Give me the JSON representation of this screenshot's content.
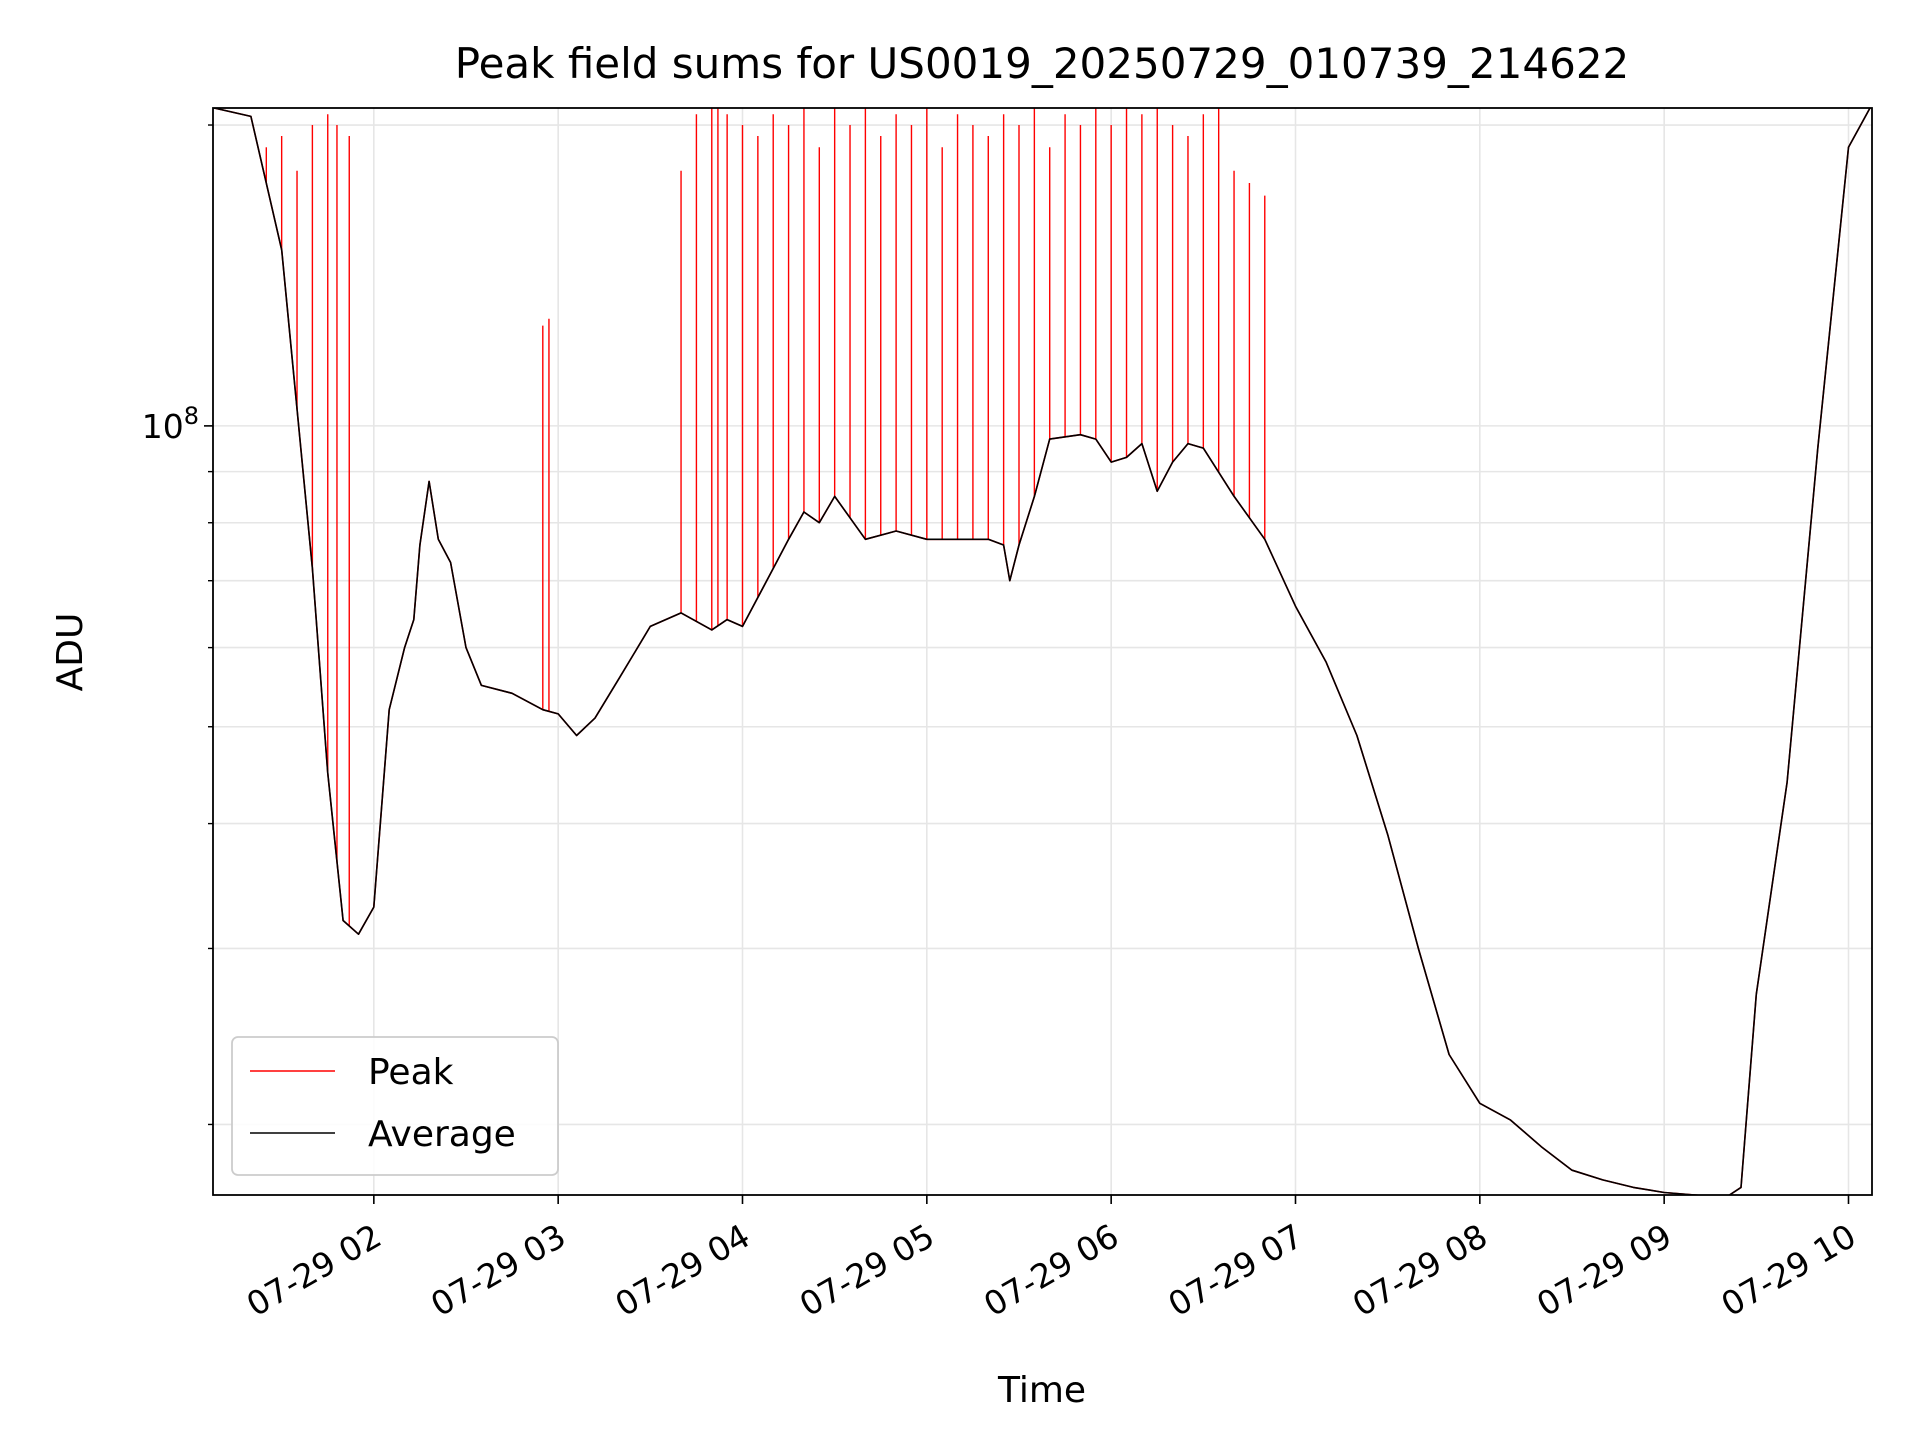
{
  "chart_data": {
    "type": "line",
    "title": "Peak field sums for US0019_20250729_010739_214622",
    "xlabel": "Time",
    "ylabel": "ADU",
    "y_scale": "log",
    "ylim": [
      17000000,
      208000000
    ],
    "xlim": [
      "2025-07-29 01:07:39",
      "2025-07-29 10:07:39"
    ],
    "grid": true,
    "legend": "lower-left",
    "x_tick_labels": [
      "07-29 02",
      "07-29 03",
      "07-29 04",
      "07-29 05",
      "07-29 06",
      "07-29 07",
      "07-29 08",
      "07-29 09",
      "07-29 10"
    ],
    "x_tick_times": [
      "2025-07-29 02:00",
      "2025-07-29 03:00",
      "2025-07-29 04:00",
      "2025-07-29 05:00",
      "2025-07-29 06:00",
      "2025-07-29 07:00",
      "2025-07-29 08:00",
      "2025-07-29 09:00",
      "2025-07-29 10:00"
    ],
    "y_major_ticks": [
      {
        "value": 100000000,
        "label_base": "10",
        "label_exp": "8"
      }
    ],
    "y_minor_ticks": [
      20000000,
      30000000,
      40000000,
      50000000,
      60000000,
      70000000,
      80000000,
      90000000,
      200000000
    ],
    "series": [
      {
        "name": "Average",
        "color": "#000000",
        "x": [
          "2025-07-29 01:08",
          "2025-07-29 01:20",
          "2025-07-29 01:30",
          "2025-07-29 01:40",
          "2025-07-29 01:45",
          "2025-07-29 01:50",
          "2025-07-29 01:55",
          "2025-07-29 02:00",
          "2025-07-29 02:05",
          "2025-07-29 02:10",
          "2025-07-29 02:13",
          "2025-07-29 02:15",
          "2025-07-29 02:18",
          "2025-07-29 02:21",
          "2025-07-29 02:25",
          "2025-07-29 02:30",
          "2025-07-29 02:35",
          "2025-07-29 02:45",
          "2025-07-29 02:55",
          "2025-07-29 03:00",
          "2025-07-29 03:06",
          "2025-07-29 03:12",
          "2025-07-29 03:20",
          "2025-07-29 03:30",
          "2025-07-29 03:40",
          "2025-07-29 03:50",
          "2025-07-29 03:55",
          "2025-07-29 04:00",
          "2025-07-29 04:10",
          "2025-07-29 04:15",
          "2025-07-29 04:20",
          "2025-07-29 04:25",
          "2025-07-29 04:30",
          "2025-07-29 04:40",
          "2025-07-29 04:50",
          "2025-07-29 05:00",
          "2025-07-29 05:10",
          "2025-07-29 05:20",
          "2025-07-29 05:25",
          "2025-07-29 05:27",
          "2025-07-29 05:30",
          "2025-07-29 05:35",
          "2025-07-29 05:40",
          "2025-07-29 05:50",
          "2025-07-29 05:55",
          "2025-07-29 06:00",
          "2025-07-29 06:05",
          "2025-07-29 06:10",
          "2025-07-29 06:15",
          "2025-07-29 06:20",
          "2025-07-29 06:25",
          "2025-07-29 06:30",
          "2025-07-29 06:40",
          "2025-07-29 06:50",
          "2025-07-29 07:00",
          "2025-07-29 07:10",
          "2025-07-29 07:20",
          "2025-07-29 07:30",
          "2025-07-29 07:40",
          "2025-07-29 07:50",
          "2025-07-29 08:00",
          "2025-07-29 08:10",
          "2025-07-29 08:20",
          "2025-07-29 08:30",
          "2025-07-29 08:40",
          "2025-07-29 08:50",
          "2025-07-29 09:00",
          "2025-07-29 09:10",
          "2025-07-29 09:20",
          "2025-07-29 09:25",
          "2025-07-29 09:30",
          "2025-07-29 09:40",
          "2025-07-29 09:50",
          "2025-07-29 10:00",
          "2025-07-29 10:07"
        ],
        "y": [
          208000000,
          204000000,
          150000000,
          72000000,
          45000000,
          32000000,
          31000000,
          33000000,
          52000000,
          60000000,
          64000000,
          76000000,
          88000000,
          77000000,
          73000000,
          60000000,
          55000000,
          54000000,
          52000000,
          51500000,
          49000000,
          51000000,
          56000000,
          63000000,
          65000000,
          62500000,
          64000000,
          63000000,
          72000000,
          77000000,
          82000000,
          80000000,
          85000000,
          77000000,
          78500000,
          77000000,
          77000000,
          77000000,
          76000000,
          70000000,
          76000000,
          85000000,
          97000000,
          98000000,
          97000000,
          92000000,
          93000000,
          96000000,
          86000000,
          92000000,
          96000000,
          95000000,
          85000000,
          77000000,
          66000000,
          58000000,
          49000000,
          39000000,
          30000000,
          23500000,
          21000000,
          20200000,
          19000000,
          18000000,
          17600000,
          17300000,
          17100000,
          17000000,
          16900000,
          17300000,
          27000000,
          44000000,
          95000000,
          190000000,
          208000000
        ]
      },
      {
        "name": "Peak",
        "color": "#ff0000",
        "x": [
          "2025-07-29 01:08",
          "2025-07-29 01:20",
          "2025-07-29 01:30",
          "2025-07-29 01:40",
          "2025-07-29 01:45",
          "2025-07-29 01:50",
          "2025-07-29 01:55",
          "2025-07-29 02:00",
          "2025-07-29 02:05",
          "2025-07-29 02:10",
          "2025-07-29 02:13",
          "2025-07-29 02:15",
          "2025-07-29 02:18",
          "2025-07-29 02:21",
          "2025-07-29 02:25",
          "2025-07-29 02:30",
          "2025-07-29 02:35",
          "2025-07-29 02:45",
          "2025-07-29 02:55",
          "2025-07-29 03:00",
          "2025-07-29 03:06",
          "2025-07-29 03:12",
          "2025-07-29 03:20",
          "2025-07-29 03:30",
          "2025-07-29 03:40",
          "2025-07-29 03:50",
          "2025-07-29 03:55",
          "2025-07-29 04:00",
          "2025-07-29 04:10",
          "2025-07-29 04:15",
          "2025-07-29 04:20",
          "2025-07-29 04:25",
          "2025-07-29 04:30",
          "2025-07-29 04:40",
          "2025-07-29 04:50",
          "2025-07-29 05:00",
          "2025-07-29 05:10",
          "2025-07-29 05:20",
          "2025-07-29 05:25",
          "2025-07-29 05:27",
          "2025-07-29 05:30",
          "2025-07-29 05:35",
          "2025-07-29 05:40",
          "2025-07-29 05:50",
          "2025-07-29 05:55",
          "2025-07-29 06:00",
          "2025-07-29 06:05",
          "2025-07-29 06:10",
          "2025-07-29 06:15",
          "2025-07-29 06:20",
          "2025-07-29 06:25",
          "2025-07-29 06:30",
          "2025-07-29 06:40",
          "2025-07-29 06:50",
          "2025-07-29 07:00",
          "2025-07-29 07:10",
          "2025-07-29 07:20",
          "2025-07-29 07:30",
          "2025-07-29 07:40",
          "2025-07-29 07:50",
          "2025-07-29 08:00",
          "2025-07-29 08:10",
          "2025-07-29 08:20",
          "2025-07-29 08:30",
          "2025-07-29 08:40",
          "2025-07-29 08:50",
          "2025-07-29 09:00",
          "2025-07-29 09:10",
          "2025-07-29 09:20",
          "2025-07-29 09:25",
          "2025-07-29 09:30",
          "2025-07-29 09:40",
          "2025-07-29 09:50",
          "2025-07-29 10:00",
          "2025-07-29 10:07"
        ],
        "y": [
          208000000,
          204000000,
          150000000,
          72000000,
          45000000,
          32000000,
          31000000,
          33000000,
          52000000,
          60000000,
          64000000,
          76000000,
          88000000,
          77000000,
          73000000,
          60000000,
          55000000,
          54000000,
          52000000,
          51500000,
          49000000,
          51000000,
          56000000,
          63000000,
          65000000,
          62500000,
          64000000,
          63000000,
          72000000,
          77000000,
          82000000,
          80000000,
          85000000,
          77000000,
          78500000,
          77000000,
          77000000,
          77000000,
          76000000,
          70000000,
          76000000,
          85000000,
          97000000,
          98000000,
          97000000,
          92000000,
          93000000,
          96000000,
          86000000,
          92000000,
          96000000,
          95000000,
          85000000,
          77000000,
          66000000,
          58000000,
          49000000,
          39000000,
          30000000,
          23500000,
          21000000,
          20200000,
          19000000,
          18000000,
          17600000,
          17300000,
          17100000,
          17000000,
          16900000,
          17300000,
          27000000,
          44000000,
          95000000,
          190000000,
          208000000
        ],
        "spikes": {
          "x": [
            "2025-07-29 01:25",
            "2025-07-29 01:30",
            "2025-07-29 01:35",
            "2025-07-29 01:40",
            "2025-07-29 01:45",
            "2025-07-29 01:48",
            "2025-07-29 01:52",
            "2025-07-29 02:55",
            "2025-07-29 02:57",
            "2025-07-29 03:40",
            "2025-07-29 03:45",
            "2025-07-29 03:50",
            "2025-07-29 03:52",
            "2025-07-29 03:55",
            "2025-07-29 04:00",
            "2025-07-29 04:05",
            "2025-07-29 04:10",
            "2025-07-29 04:15",
            "2025-07-29 04:20",
            "2025-07-29 04:25",
            "2025-07-29 04:30",
            "2025-07-29 04:35",
            "2025-07-29 04:40",
            "2025-07-29 04:45",
            "2025-07-29 04:50",
            "2025-07-29 04:55",
            "2025-07-29 05:00",
            "2025-07-29 05:05",
            "2025-07-29 05:10",
            "2025-07-29 05:15",
            "2025-07-29 05:20",
            "2025-07-29 05:25",
            "2025-07-29 05:30",
            "2025-07-29 05:35",
            "2025-07-29 05:40",
            "2025-07-29 05:45",
            "2025-07-29 05:50",
            "2025-07-29 05:55",
            "2025-07-29 06:00",
            "2025-07-29 06:05",
            "2025-07-29 06:10",
            "2025-07-29 06:15",
            "2025-07-29 06:20",
            "2025-07-29 06:25",
            "2025-07-29 06:30",
            "2025-07-29 06:35",
            "2025-07-29 06:40",
            "2025-07-29 06:45",
            "2025-07-29 06:50"
          ],
          "y": [
            190000000,
            195000000,
            180000000,
            200000000,
            205000000,
            200000000,
            195000000,
            126000000,
            128000000,
            180000000,
            205000000,
            208000000,
            208000000,
            205000000,
            200000000,
            195000000,
            205000000,
            200000000,
            208000000,
            190000000,
            208000000,
            200000000,
            208000000,
            195000000,
            205000000,
            200000000,
            208000000,
            190000000,
            205000000,
            200000000,
            195000000,
            205000000,
            200000000,
            208000000,
            190000000,
            205000000,
            200000000,
            208000000,
            200000000,
            208000000,
            205000000,
            208000000,
            200000000,
            195000000,
            205000000,
            208000000,
            180000000,
            175000000,
            170000000
          ]
        }
      }
    ]
  }
}
